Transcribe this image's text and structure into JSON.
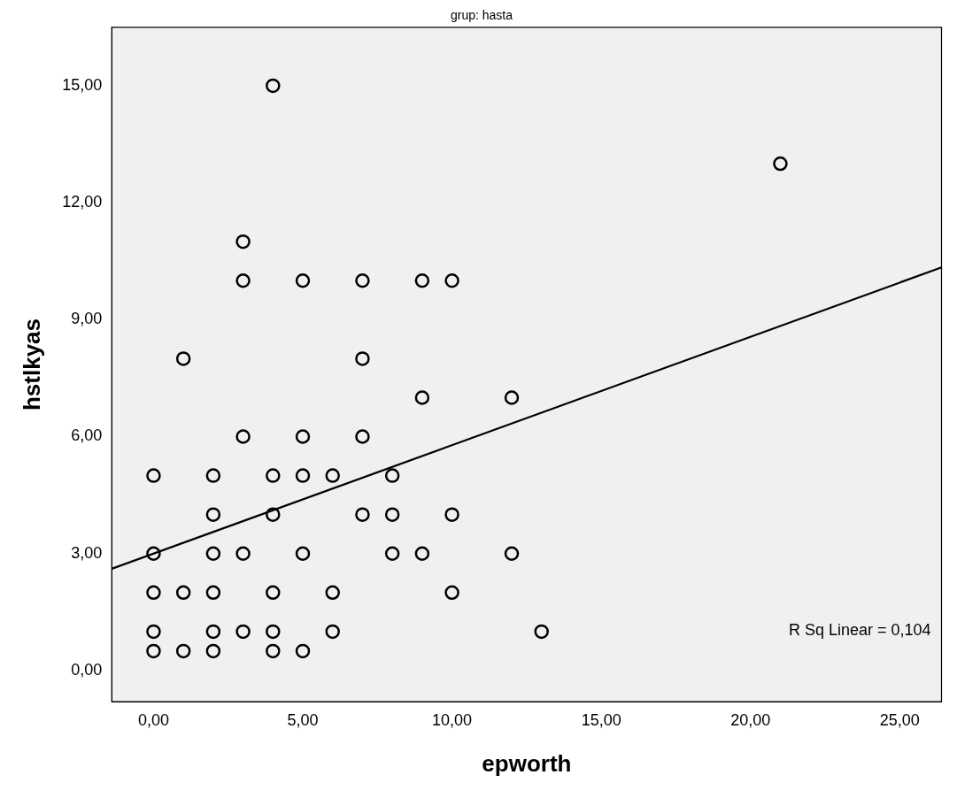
{
  "chart_data": {
    "type": "scatter",
    "title": "grup: hasta",
    "xlabel": "epworth",
    "ylabel": "hstlkyas",
    "xlim": [
      -1.4,
      26.4
    ],
    "ylim": [
      -0.8,
      16.5
    ],
    "xticks": [
      {
        "value": 0,
        "label": "0,00"
      },
      {
        "value": 5,
        "label": "5,00"
      },
      {
        "value": 10,
        "label": "10,00"
      },
      {
        "value": 15,
        "label": "15,00"
      },
      {
        "value": 20,
        "label": "20,00"
      },
      {
        "value": 25,
        "label": "25,00"
      }
    ],
    "yticks": [
      {
        "value": 0,
        "label": "0,00"
      },
      {
        "value": 3,
        "label": "3,00"
      },
      {
        "value": 6,
        "label": "6,00"
      },
      {
        "value": 9,
        "label": "9,00"
      },
      {
        "value": 12,
        "label": "12,00"
      },
      {
        "value": 15,
        "label": "15,00"
      }
    ],
    "grid": false,
    "legend": false,
    "series": [
      {
        "marker": "circle",
        "color": "#000000",
        "x": [
          0,
          0,
          0,
          0,
          0,
          1,
          1,
          1,
          2,
          2,
          2,
          2,
          2,
          2,
          3,
          3,
          3,
          3,
          3,
          4,
          4,
          4,
          4,
          4,
          4,
          5,
          5,
          5,
          5,
          5,
          6,
          6,
          6,
          7,
          7,
          7,
          7,
          8,
          8,
          8,
          9,
          9,
          9,
          10,
          10,
          10,
          12,
          12,
          13,
          21
        ],
        "values": [
          5,
          3,
          2,
          1,
          0.5,
          8,
          2,
          0.5,
          5,
          4,
          3,
          2,
          1,
          0.5,
          11,
          10,
          6,
          3,
          1,
          15,
          5,
          4,
          2,
          1,
          0.5,
          10,
          6,
          5,
          3,
          0.5,
          5,
          2,
          1,
          10,
          8,
          6,
          4,
          5,
          4,
          3,
          10,
          7,
          3,
          10,
          4,
          2,
          7,
          3,
          1,
          13
        ]
      },
      {
        "type": "line",
        "marker": "none",
        "color": "#000000",
        "x": [
          -1.4,
          26.4
        ],
        "values": [
          2.61,
          10.34
        ]
      }
    ],
    "annotations": [
      "R Sq Linear = 0,104"
    ]
  }
}
